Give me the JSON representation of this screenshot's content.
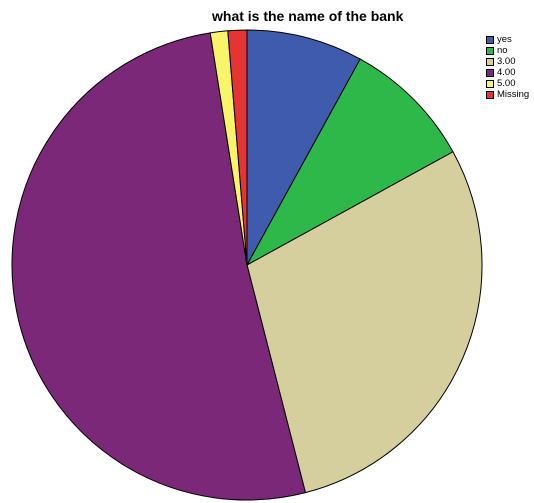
{
  "chart_data": {
    "type": "pie",
    "title": "what is the name of the bank",
    "legend_position": "top-right",
    "start_angle": "12 o'clock",
    "direction": "clockwise",
    "slices": [
      {
        "label": "yes",
        "value": 8.0,
        "color": "#3f5bae"
      },
      {
        "label": "no",
        "value": 9.0,
        "color": "#2fb84a"
      },
      {
        "label": "3.00",
        "value": 29.0,
        "color": "#d4cf9c"
      },
      {
        "label": "4.00",
        "value": 51.5,
        "color": "#7b2878"
      },
      {
        "label": "5.00",
        "value": 1.2,
        "color": "#f9f56a"
      },
      {
        "label": "Missing",
        "value": 1.3,
        "color": "#e63333"
      }
    ]
  }
}
